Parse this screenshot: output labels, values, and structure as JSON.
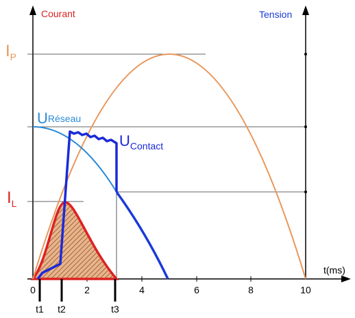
{
  "axes": {
    "left_label": "Courant",
    "right_label": "Tension",
    "x_label": "t(ms)",
    "x_ticks": [
      "0",
      "2",
      "4",
      "6",
      "8",
      "10"
    ]
  },
  "levels": {
    "ip": {
      "main": "I",
      "sub": "P"
    },
    "il": {
      "main": "I",
      "sub": "L"
    },
    "u_reseau": {
      "main": "U",
      "sub": "Réseau"
    },
    "u_contact": {
      "main": "U",
      "sub": "Contact"
    }
  },
  "times": [
    "t1",
    "t2",
    "t3"
  ]
}
